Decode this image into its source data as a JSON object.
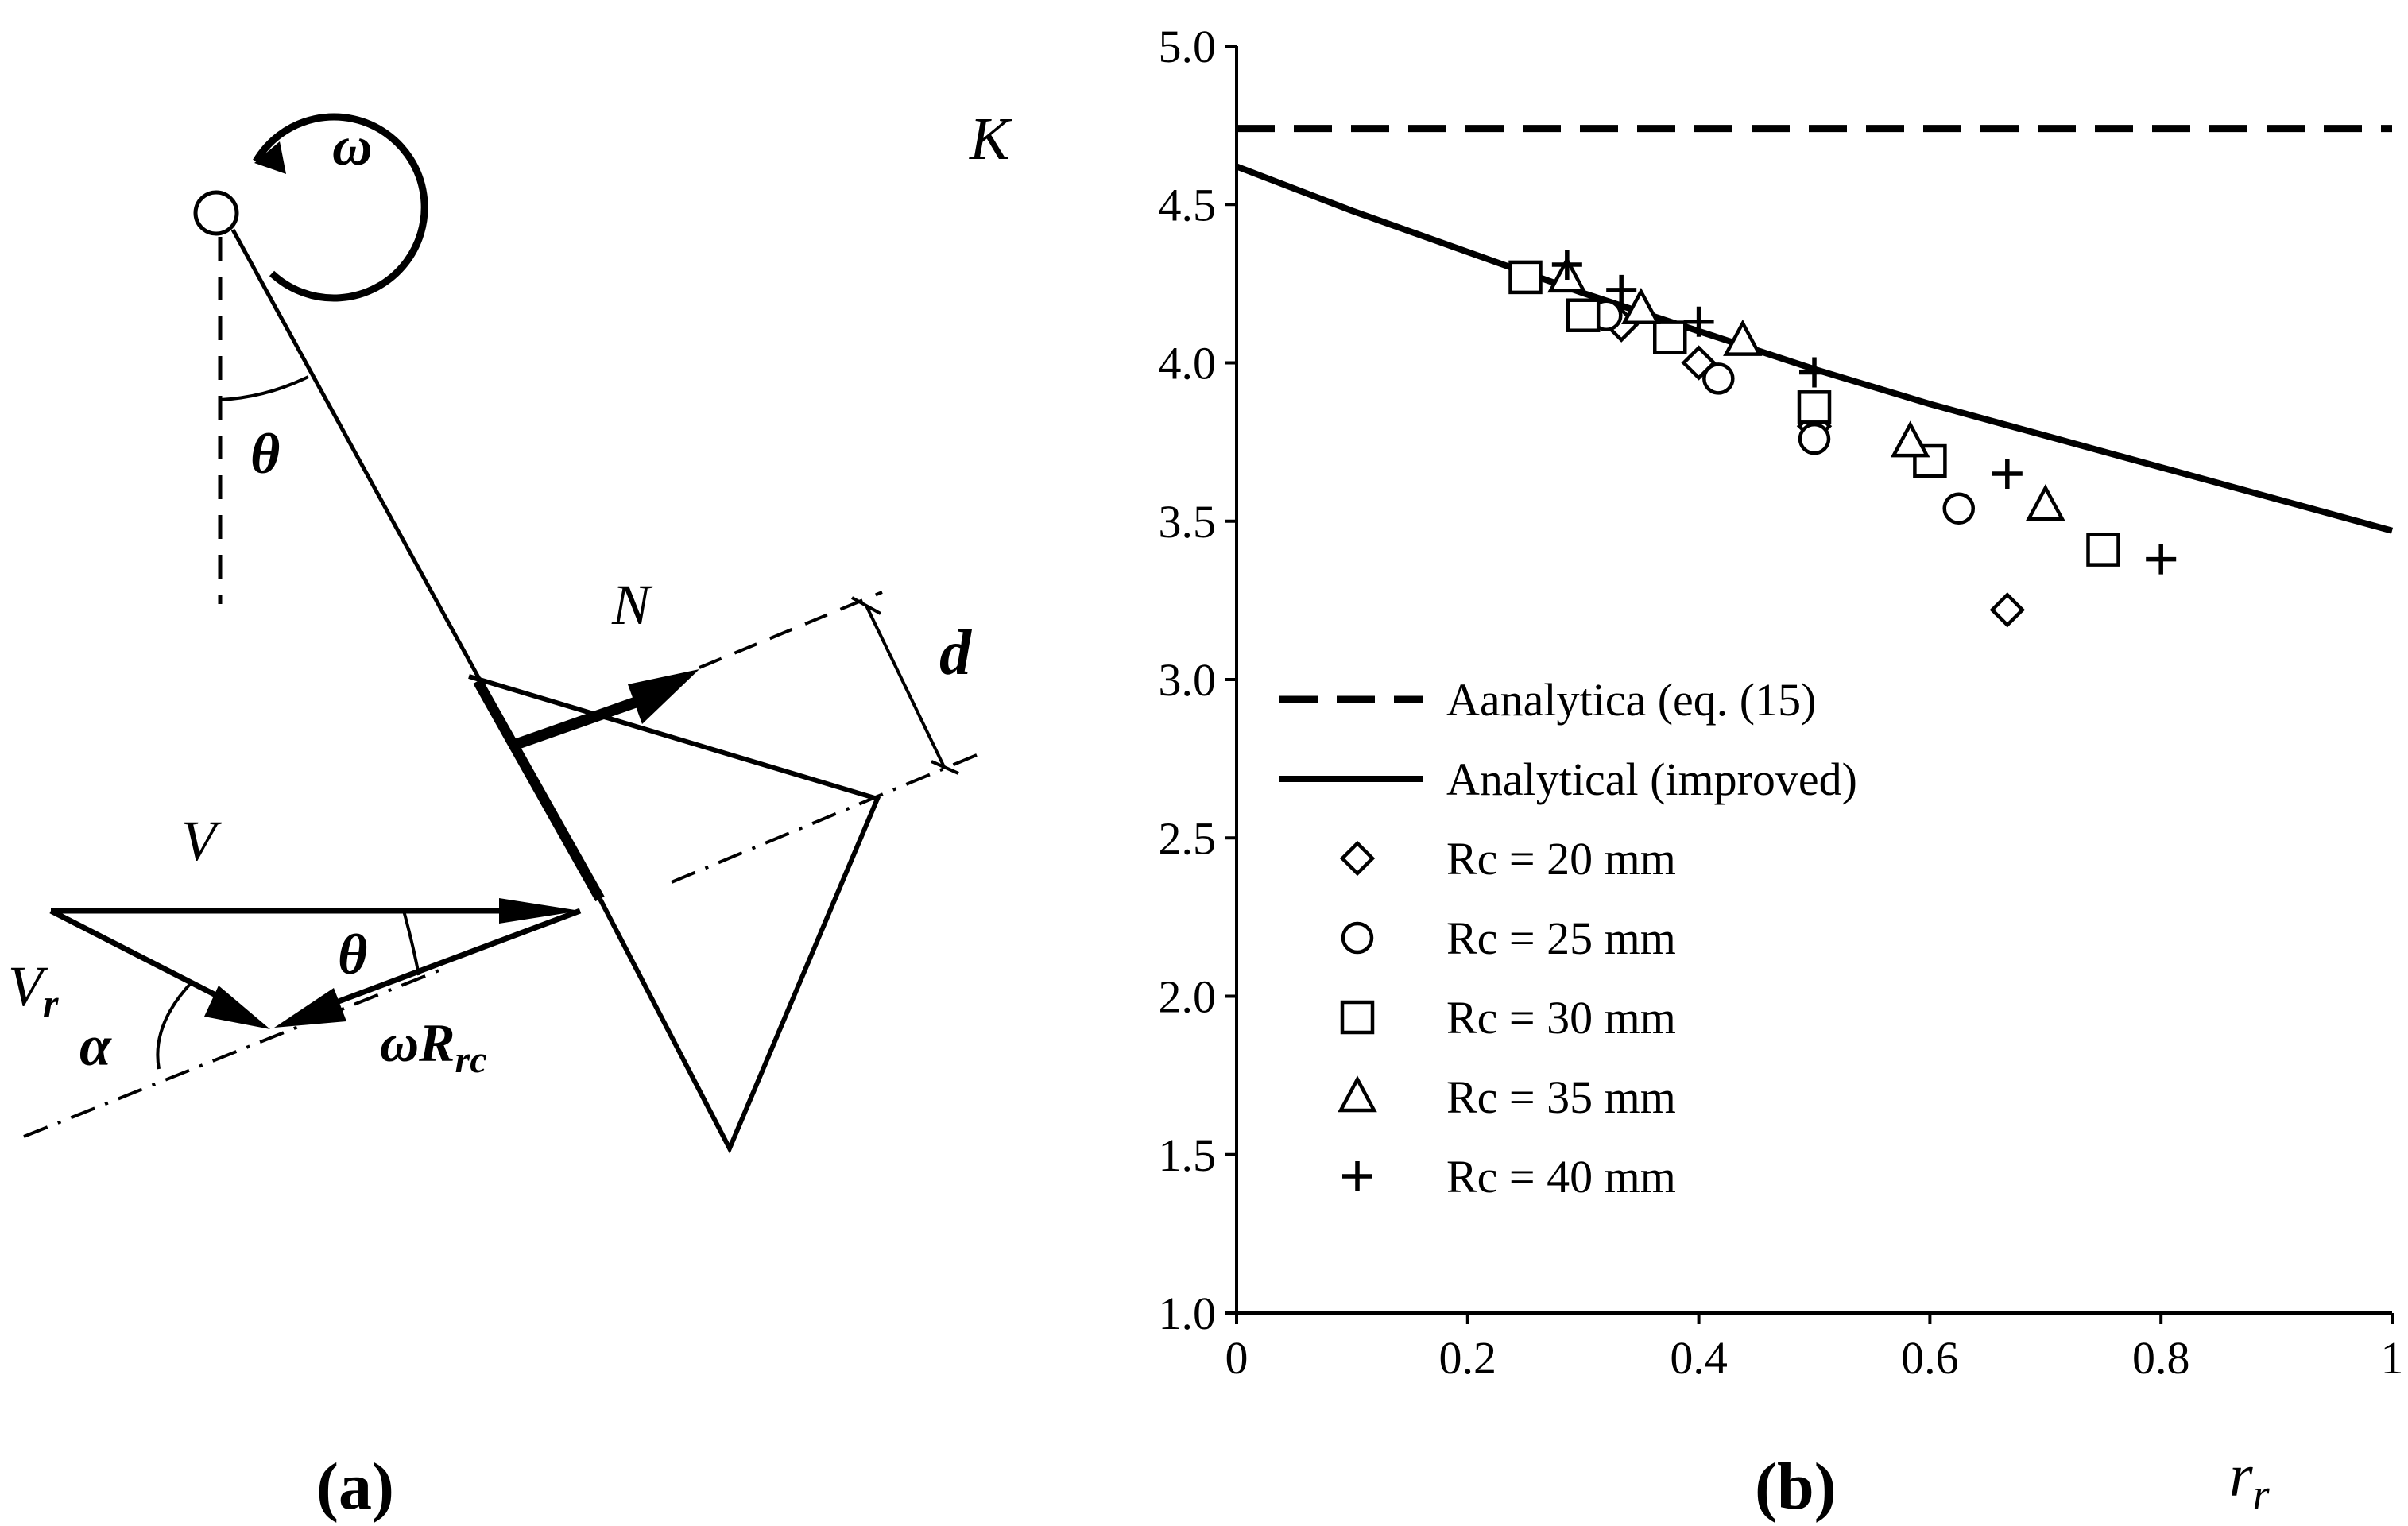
{
  "diagram": {
    "label_omega": "ω",
    "label_theta_top": "θ",
    "label_N": "N",
    "label_d": "d",
    "label_V": "V",
    "label_Vr_main": "V",
    "label_Vr_sub": "r",
    "label_theta_bottom": "θ",
    "label_alpha": "α",
    "label_omegaR_main": "ωR",
    "label_omegaR_sub": "rc"
  },
  "captions": {
    "a": "(a)",
    "b": "(b)"
  },
  "chart_data": {
    "type": "scatter",
    "ylabel": "K",
    "xlabel_main": "r",
    "xlabel_sub": "r",
    "xlim": [
      0,
      1
    ],
    "ylim": [
      1.0,
      5.0
    ],
    "xticks": [
      0,
      0.2,
      0.4,
      0.6,
      0.8,
      1
    ],
    "xtick_labels": [
      "0",
      "0.2",
      "0.4",
      "0.6",
      "0.8",
      "1"
    ],
    "yticks": [
      1.0,
      1.5,
      2.0,
      2.5,
      3.0,
      3.5,
      4.0,
      4.5,
      5.0
    ],
    "ytick_labels": [
      "1.0",
      "1.5",
      "2.0",
      "2.5",
      "3.0",
      "3.5",
      "4.0",
      "4.5",
      "5.0"
    ],
    "grid": false,
    "legend_position": "lower-left",
    "series": [
      {
        "name": "Aanalytica (eq. (15)",
        "style": "dashed-line",
        "x": [
          0,
          1
        ],
        "y": [
          4.74,
          4.74
        ]
      },
      {
        "name": "Analytical (improved)",
        "style": "solid-line",
        "x": [
          0,
          0.1,
          0.2,
          0.3,
          0.4,
          0.5,
          0.6,
          0.7,
          0.8,
          0.9,
          1.0
        ],
        "y": [
          4.62,
          4.48,
          4.35,
          4.22,
          4.1,
          3.98,
          3.87,
          3.77,
          3.67,
          3.57,
          3.47
        ]
      },
      {
        "name": "Rc = 20 mm",
        "style": "diamond",
        "x": [
          0.333,
          0.4,
          0.5,
          0.667
        ],
        "y": [
          4.12,
          4.0,
          3.8,
          3.22
        ]
      },
      {
        "name": "Rc = 25 mm",
        "style": "circle",
        "x": [
          0.32,
          0.417,
          0.5,
          0.625
        ],
        "y": [
          4.15,
          3.95,
          3.76,
          3.54
        ]
      },
      {
        "name": "Rc = 30 mm",
        "style": "square",
        "x": [
          0.25,
          0.3,
          0.375,
          0.5,
          0.6,
          0.75
        ],
        "y": [
          4.27,
          4.15,
          4.08,
          3.86,
          3.69,
          3.41
        ]
      },
      {
        "name": "Rc = 35 mm",
        "style": "triangle",
        "x": [
          0.286,
          0.35,
          0.438,
          0.583,
          0.7
        ],
        "y": [
          4.27,
          4.17,
          4.07,
          3.75,
          3.55
        ]
      },
      {
        "name": "Rc = 40 mm",
        "style": "plus",
        "x": [
          0.286,
          0.333,
          0.4,
          0.5,
          0.667,
          0.8
        ],
        "y": [
          4.31,
          4.23,
          4.13,
          3.97,
          3.65,
          3.38
        ]
      }
    ]
  }
}
